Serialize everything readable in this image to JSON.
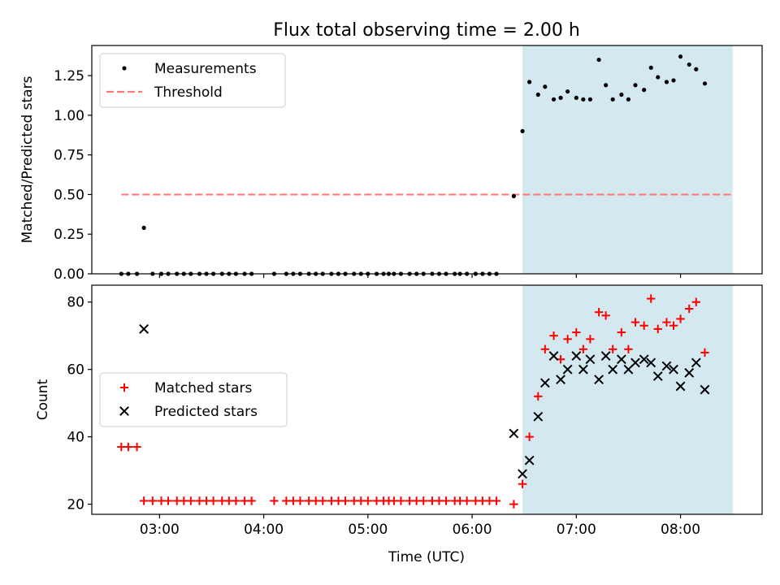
{
  "figure": {
    "title": "Flux total observing time = 2.00 h",
    "xlabel": "Time (UTC)"
  },
  "colors": {
    "shade": "#d3e9ef",
    "threshold": "#ff7a7a",
    "matched": "#ff0000",
    "predicted": "#000000",
    "measurement": "#000000"
  },
  "chart_data": [
    {
      "type": "scatter",
      "panel": "top",
      "ylabel": "Matched/Predicted stars",
      "xlim": [
        "02:21",
        "08:47"
      ],
      "ylim": [
        0,
        1.44
      ],
      "x_ticks": [
        "03:00",
        "04:00",
        "05:00",
        "06:00",
        "07:00",
        "08:00"
      ],
      "y_ticks": [
        "0.00",
        "0.25",
        "0.50",
        "0.75",
        "1.00",
        "1.25"
      ],
      "shaded_span": [
        "06:29",
        "08:30"
      ],
      "legend": {
        "placement": "upper-left",
        "entries": [
          "Measurements",
          "Threshold"
        ]
      },
      "threshold": {
        "name": "Threshold",
        "y": 0.5,
        "x": [
          "02:38",
          "08:30"
        ]
      },
      "series": [
        {
          "name": "Measurements",
          "marker": "dot",
          "points": [
            [
              "02:38",
              0
            ],
            [
              "02:42",
              0
            ],
            [
              "02:47",
              0
            ],
            [
              "02:51",
              0.29
            ],
            [
              "02:56",
              0
            ],
            [
              "03:01",
              0
            ],
            [
              "03:05",
              0
            ],
            [
              "03:10",
              0
            ],
            [
              "03:14",
              0
            ],
            [
              "03:18",
              0
            ],
            [
              "03:23",
              0
            ],
            [
              "03:27",
              0
            ],
            [
              "03:31",
              0
            ],
            [
              "03:36",
              0
            ],
            [
              "03:40",
              0
            ],
            [
              "03:44",
              0
            ],
            [
              "03:49",
              0
            ],
            [
              "03:53",
              0
            ],
            [
              "04:06",
              0
            ],
            [
              "04:13",
              0
            ],
            [
              "04:17",
              0
            ],
            [
              "04:21",
              0
            ],
            [
              "04:26",
              0
            ],
            [
              "04:30",
              0
            ],
            [
              "04:34",
              0
            ],
            [
              "04:39",
              0
            ],
            [
              "04:43",
              0
            ],
            [
              "04:47",
              0
            ],
            [
              "04:52",
              0
            ],
            [
              "04:56",
              0
            ],
            [
              "05:00",
              0
            ],
            [
              "05:05",
              0
            ],
            [
              "05:09",
              0
            ],
            [
              "05:12",
              0
            ],
            [
              "05:15",
              0
            ],
            [
              "05:19",
              0
            ],
            [
              "05:24",
              0
            ],
            [
              "05:28",
              0
            ],
            [
              "05:32",
              0
            ],
            [
              "05:37",
              0
            ],
            [
              "05:41",
              0
            ],
            [
              "05:45",
              0
            ],
            [
              "05:50",
              0
            ],
            [
              "05:53",
              0
            ],
            [
              "05:57",
              0
            ],
            [
              "06:02",
              0
            ],
            [
              "06:06",
              0
            ],
            [
              "06:10",
              0
            ],
            [
              "06:14",
              0
            ],
            [
              "06:24",
              0.49
            ],
            [
              "06:29",
              0.9
            ],
            [
              "06:33",
              1.21
            ],
            [
              "06:38",
              1.13
            ],
            [
              "06:42",
              1.18
            ],
            [
              "06:47",
              1.1
            ],
            [
              "06:51",
              1.11
            ],
            [
              "06:55",
              1.15
            ],
            [
              "07:00",
              1.11
            ],
            [
              "07:04",
              1.1
            ],
            [
              "07:08",
              1.1
            ],
            [
              "07:13",
              1.35
            ],
            [
              "07:17",
              1.19
            ],
            [
              "07:21",
              1.1
            ],
            [
              "07:26",
              1.13
            ],
            [
              "07:30",
              1.1
            ],
            [
              "07:34",
              1.19
            ],
            [
              "07:39",
              1.16
            ],
            [
              "07:43",
              1.3
            ],
            [
              "07:47",
              1.24
            ],
            [
              "07:52",
              1.21
            ],
            [
              "07:56",
              1.22
            ],
            [
              "08:00",
              1.37
            ],
            [
              "08:05",
              1.32
            ],
            [
              "08:09",
              1.29
            ],
            [
              "08:14",
              1.2
            ]
          ]
        }
      ]
    },
    {
      "type": "scatter",
      "panel": "bottom",
      "ylabel": "Count",
      "xlim": [
        "02:21",
        "08:47"
      ],
      "ylim": [
        17,
        85
      ],
      "x_ticks": [
        "03:00",
        "04:00",
        "05:00",
        "06:00",
        "07:00",
        "08:00"
      ],
      "y_ticks": [
        "20",
        "40",
        "60",
        "80"
      ],
      "shaded_span": [
        "06:29",
        "08:30"
      ],
      "legend": {
        "placement": "center-left",
        "entries": [
          "Matched stars",
          "Predicted stars"
        ]
      },
      "series": [
        {
          "name": "Matched stars",
          "marker": "plus",
          "points": [
            [
              "02:38",
              37
            ],
            [
              "02:42",
              37
            ],
            [
              "02:47",
              37
            ],
            [
              "02:51",
              21
            ],
            [
              "02:56",
              21
            ],
            [
              "03:01",
              21
            ],
            [
              "03:05",
              21
            ],
            [
              "03:10",
              21
            ],
            [
              "03:14",
              21
            ],
            [
              "03:18",
              21
            ],
            [
              "03:23",
              21
            ],
            [
              "03:27",
              21
            ],
            [
              "03:31",
              21
            ],
            [
              "03:36",
              21
            ],
            [
              "03:40",
              21
            ],
            [
              "03:44",
              21
            ],
            [
              "03:49",
              21
            ],
            [
              "03:53",
              21
            ],
            [
              "04:06",
              21
            ],
            [
              "04:13",
              21
            ],
            [
              "04:17",
              21
            ],
            [
              "04:21",
              21
            ],
            [
              "04:26",
              21
            ],
            [
              "04:30",
              21
            ],
            [
              "04:34",
              21
            ],
            [
              "04:39",
              21
            ],
            [
              "04:43",
              21
            ],
            [
              "04:47",
              21
            ],
            [
              "04:52",
              21
            ],
            [
              "04:56",
              21
            ],
            [
              "05:00",
              21
            ],
            [
              "05:05",
              21
            ],
            [
              "05:09",
              21
            ],
            [
              "05:12",
              21
            ],
            [
              "05:15",
              21
            ],
            [
              "05:19",
              21
            ],
            [
              "05:24",
              21
            ],
            [
              "05:28",
              21
            ],
            [
              "05:32",
              21
            ],
            [
              "05:37",
              21
            ],
            [
              "05:41",
              21
            ],
            [
              "05:45",
              21
            ],
            [
              "05:50",
              21
            ],
            [
              "05:53",
              21
            ],
            [
              "05:57",
              21
            ],
            [
              "06:02",
              21
            ],
            [
              "06:06",
              21
            ],
            [
              "06:10",
              21
            ],
            [
              "06:14",
              21
            ],
            [
              "06:24",
              20
            ],
            [
              "06:29",
              26
            ],
            [
              "06:33",
              40
            ],
            [
              "06:38",
              52
            ],
            [
              "06:42",
              66
            ],
            [
              "06:47",
              70
            ],
            [
              "06:51",
              63
            ],
            [
              "06:55",
              69
            ],
            [
              "07:00",
              71
            ],
            [
              "07:04",
              66
            ],
            [
              "07:08",
              69
            ],
            [
              "07:13",
              77
            ],
            [
              "07:17",
              76
            ],
            [
              "07:21",
              66
            ],
            [
              "07:26",
              71
            ],
            [
              "07:30",
              66
            ],
            [
              "07:34",
              74
            ],
            [
              "07:39",
              73
            ],
            [
              "07:43",
              81
            ],
            [
              "07:47",
              72
            ],
            [
              "07:52",
              74
            ],
            [
              "07:56",
              73
            ],
            [
              "08:00",
              75
            ],
            [
              "08:05",
              78
            ],
            [
              "08:09",
              80
            ],
            [
              "08:14",
              65
            ]
          ]
        },
        {
          "name": "Predicted stars",
          "marker": "x",
          "points": [
            [
              "02:51",
              72
            ],
            [
              "06:24",
              41
            ],
            [
              "06:29",
              29
            ],
            [
              "06:33",
              33
            ],
            [
              "06:38",
              46
            ],
            [
              "06:42",
              56
            ],
            [
              "06:47",
              64
            ],
            [
              "06:51",
              57
            ],
            [
              "06:55",
              60
            ],
            [
              "07:00",
              64
            ],
            [
              "07:04",
              60
            ],
            [
              "07:08",
              63
            ],
            [
              "07:13",
              57
            ],
            [
              "07:17",
              64
            ],
            [
              "07:21",
              60
            ],
            [
              "07:26",
              63
            ],
            [
              "07:30",
              60
            ],
            [
              "07:34",
              62
            ],
            [
              "07:39",
              63
            ],
            [
              "07:43",
              62
            ],
            [
              "07:47",
              58
            ],
            [
              "07:52",
              61
            ],
            [
              "07:56",
              60
            ],
            [
              "08:00",
              55
            ],
            [
              "08:05",
              59
            ],
            [
              "08:09",
              62
            ],
            [
              "08:14",
              54
            ]
          ]
        }
      ]
    }
  ]
}
